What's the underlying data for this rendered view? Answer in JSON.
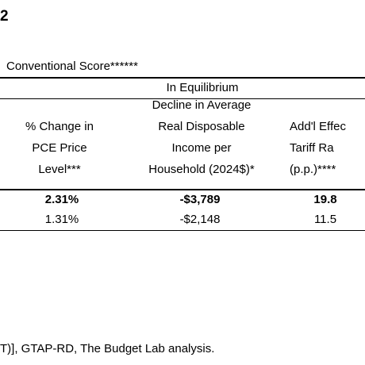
{
  "header": {
    "title": "2",
    "subtitle": "Conventional Score******"
  },
  "table": {
    "group_header": "In Equilibrium",
    "columns": [
      [
        "% Change in",
        "PCE Price",
        "Level***"
      ],
      [
        "Decline in Average",
        "Real Disposable",
        "Income per",
        "Household (2024$)*"
      ],
      [
        "Add'l Effec",
        "Tariff Ra",
        "(p.p.)****"
      ]
    ],
    "rows": [
      [
        "2.31%",
        "-$3,789",
        "19.8"
      ],
      [
        "1.31%",
        "-$2,148",
        "11.5"
      ]
    ]
  },
  "footer": {
    "source": "T)], GTAP-RD, The Budget Lab analysis."
  }
}
